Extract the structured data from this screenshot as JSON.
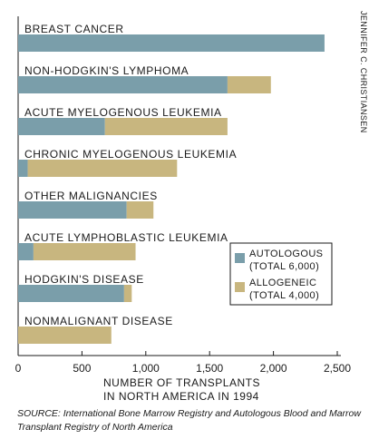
{
  "chart_data": {
    "type": "bar",
    "orientation": "horizontal",
    "stacked": true,
    "categories": [
      "BREAST CANCER",
      "NON-HODGKIN'S LYMPHOMA",
      "ACUTE MYELOGENOUS LEUKEMIA",
      "CHRONIC MYELOGENOUS LEUKEMIA",
      "OTHER MALIGNANCIES",
      "ACUTE LYMPHOBLASTIC LEUKEMIA",
      "HODGKIN'S DISEASE",
      "NONMALIGNANT DISEASE"
    ],
    "series": [
      {
        "name": "AUTOLOGOUS",
        "total_label": "(TOTAL 6,000)",
        "color": "#7a9eaa",
        "values": [
          2400,
          1640,
          680,
          75,
          850,
          120,
          830,
          0
        ]
      },
      {
        "name": "ALLOGENEIC",
        "total_label": "(TOTAL 4,000)",
        "color": "#c8b67f",
        "values": [
          0,
          340,
          960,
          1170,
          210,
          800,
          60,
          730
        ]
      }
    ],
    "xticks": [
      0,
      500,
      1000,
      1500,
      2000,
      2500
    ],
    "xtick_labels": [
      "0",
      "500",
      "1,000",
      "1,500",
      "2,000",
      "2,500"
    ],
    "xlim": [
      0,
      2500
    ],
    "xlabel_lines": [
      "NUMBER OF TRANSPLANTS",
      "IN NORTH AMERICA IN 1994"
    ],
    "ylabel": "",
    "title": "",
    "grid": false,
    "legend_position": "lower-right"
  },
  "credit": "JENNIFER C. CHRISTIANSEN",
  "source": "SOURCE: International Bone Marrow Registry and Autologous Blood and Marrow Transplant Registry of North America"
}
